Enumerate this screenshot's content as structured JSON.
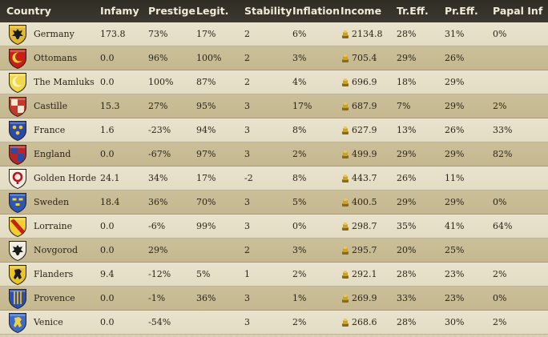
{
  "table": {
    "headers": [
      "Country",
      "Infamy",
      "Prestige",
      "Legit.",
      "Stability",
      "Inflation",
      "Income",
      "Tr.Eff.",
      "Pr.Eff.",
      "Papal Inf"
    ],
    "rows": [
      {
        "country": "Germany",
        "infamy": "173.8",
        "prestige": "73%",
        "legit": "17%",
        "stability": "2",
        "inflation": "6%",
        "income": "2134.8",
        "tr_eff": "28%",
        "pr_eff": "31%",
        "papal_inf": "0%",
        "shield_color": "#e2b92a",
        "emblem_color": "#1a1a1a",
        "emblem": "eagle"
      },
      {
        "country": "Ottomans",
        "infamy": "0.0",
        "prestige": "96%",
        "legit": "100%",
        "stability": "2",
        "inflation": "3%",
        "income": "705.4",
        "tr_eff": "29%",
        "pr_eff": "26%",
        "papal_inf": "",
        "shield_color": "#c81e16",
        "emblem_color": "#f2d23a",
        "emblem": "crescent"
      },
      {
        "country": "The Mamluks",
        "infamy": "0.0",
        "prestige": "100%",
        "legit": "87%",
        "stability": "2",
        "inflation": "4%",
        "income": "696.9",
        "tr_eff": "18%",
        "pr_eff": "29%",
        "papal_inf": "",
        "shield_color": "#f0d84a",
        "emblem_color": "#fff6b0",
        "emblem": "crescent"
      },
      {
        "country": "Castille",
        "infamy": "15.3",
        "prestige": "27%",
        "legit": "95%",
        "stability": "3",
        "inflation": "17%",
        "income": "687.9",
        "tr_eff": "7%",
        "pr_eff": "29%",
        "papal_inf": "2%",
        "shield_color": "#c33a2a",
        "emblem_color": "#f4e9d0",
        "emblem": "quarters"
      },
      {
        "country": "France",
        "infamy": "1.6",
        "prestige": "-23%",
        "legit": "94%",
        "stability": "3",
        "inflation": "8%",
        "income": "627.9",
        "tr_eff": "13%",
        "pr_eff": "26%",
        "papal_inf": "33%",
        "shield_color": "#2a4aa8",
        "emblem_color": "#f0c830",
        "emblem": "lilies"
      },
      {
        "country": "England",
        "infamy": "0.0",
        "prestige": "-67%",
        "legit": "97%",
        "stability": "3",
        "inflation": "2%",
        "income": "499.9",
        "tr_eff": "29%",
        "pr_eff": "29%",
        "papal_inf": "82%",
        "shield_color": "#b8242a",
        "emblem_color": "#2a4aa8",
        "emblem": "quarters"
      },
      {
        "country": "Golden Horde",
        "infamy": "24.1",
        "prestige": "34%",
        "legit": "17%",
        "stability": "-2",
        "inflation": "8%",
        "income": "443.7",
        "tr_eff": "26%",
        "pr_eff": "11%",
        "papal_inf": "",
        "shield_color": "#f1ede2",
        "emblem_color": "#b8141a",
        "emblem": "ring"
      },
      {
        "country": "Sweden",
        "infamy": "18.4",
        "prestige": "36%",
        "legit": "70%",
        "stability": "3",
        "inflation": "5%",
        "income": "400.5",
        "tr_eff": "29%",
        "pr_eff": "29%",
        "papal_inf": "0%",
        "shield_color": "#2a56b8",
        "emblem_color": "#f2d23a",
        "emblem": "crowns"
      },
      {
        "country": "Lorraine",
        "infamy": "0.0",
        "prestige": "-6%",
        "legit": "99%",
        "stability": "3",
        "inflation": "0%",
        "income": "298.7",
        "tr_eff": "35%",
        "pr_eff": "41%",
        "papal_inf": "64%",
        "shield_color": "#f2cf2e",
        "emblem_color": "#c8201a",
        "emblem": "bend"
      },
      {
        "country": "Novgorod",
        "infamy": "0.0",
        "prestige": "29%",
        "legit": "",
        "stability": "2",
        "inflation": "3%",
        "income": "295.7",
        "tr_eff": "20%",
        "pr_eff": "25%",
        "papal_inf": "",
        "shield_color": "#f1ece0",
        "emblem_color": "#1a1a1a",
        "emblem": "eagle"
      },
      {
        "country": "Flanders",
        "infamy": "9.4",
        "prestige": "-12%",
        "legit": "5%",
        "stability": "1",
        "inflation": "2%",
        "income": "292.1",
        "tr_eff": "28%",
        "pr_eff": "23%",
        "papal_inf": "2%",
        "shield_color": "#e8c42a",
        "emblem_color": "#1a1a1a",
        "emblem": "lion"
      },
      {
        "country": "Provence",
        "infamy": "0.0",
        "prestige": "-1%",
        "legit": "36%",
        "stability": "3",
        "inflation": "1%",
        "income": "269.9",
        "tr_eff": "33%",
        "pr_eff": "23%",
        "papal_inf": "0%",
        "shield_color": "#2f4fb0",
        "emblem_color": "#d8b02c",
        "emblem": "stripes"
      },
      {
        "country": "Venice",
        "infamy": "0.0",
        "prestige": "-54%",
        "legit": "",
        "stability": "3",
        "inflation": "2%",
        "income": "268.6",
        "tr_eff": "28%",
        "pr_eff": "30%",
        "papal_inf": "2%",
        "shield_color": "#3d6cc8",
        "emblem_color": "#f2d23a",
        "emblem": "lion"
      }
    ]
  },
  "icons": {
    "shield": "shield-icon",
    "coin": "gold-coin-icon"
  },
  "colors": {
    "header_bg": "#2f2d24",
    "header_text": "#f1ecd8",
    "row_light": "#e6e0c8",
    "row_dark": "#c9bd96",
    "text": "#2a2418",
    "coin": "#c8a22a"
  }
}
